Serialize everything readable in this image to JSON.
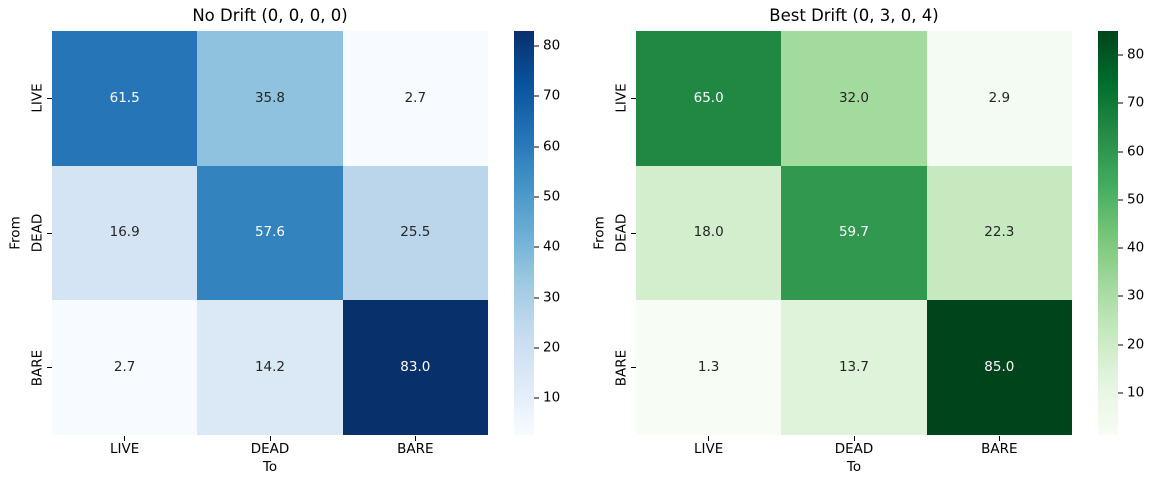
{
  "figure": {
    "background": "#ffffff",
    "axis_text_color": "#000000",
    "annotation_dark_color": "#262626",
    "annotation_light_color": "#ffffff"
  },
  "colormaps": {
    "Blues": [
      "#f7fbff",
      "#deebf7",
      "#c6dbef",
      "#9ecae1",
      "#6baed6",
      "#4292c6",
      "#2171b5",
      "#08519c",
      "#08306b"
    ],
    "Greens": [
      "#f7fcf5",
      "#e5f5e0",
      "#c7e9c0",
      "#a1d99b",
      "#74c476",
      "#41ab5d",
      "#238b45",
      "#006d2c",
      "#00441b"
    ]
  },
  "chart_data": [
    {
      "type": "heatmap",
      "title": "No Drift (0, 0, 0, 0)",
      "xlabel": "To",
      "ylabel": "From",
      "x_tick_labels": [
        "LIVE",
        "DEAD",
        "BARE"
      ],
      "y_tick_labels": [
        "LIVE",
        "DEAD",
        "BARE"
      ],
      "rows": [
        [
          61.5,
          35.8,
          2.7
        ],
        [
          16.9,
          57.6,
          25.5
        ],
        [
          2.7,
          14.2,
          83.0
        ]
      ],
      "value_decimals": 1,
      "colormap": "Blues",
      "vmin": 2.7,
      "vmax": 83.0,
      "colorbar_ticks": [
        10,
        20,
        30,
        40,
        50,
        60,
        70,
        80
      ],
      "legend_position": "colorbar-right",
      "grid": false
    },
    {
      "type": "heatmap",
      "title": "Best Drift (0, 3, 0, 4)",
      "xlabel": "To",
      "ylabel": "From",
      "x_tick_labels": [
        "LIVE",
        "DEAD",
        "BARE"
      ],
      "y_tick_labels": [
        "LIVE",
        "DEAD",
        "BARE"
      ],
      "rows": [
        [
          65.0,
          32.0,
          2.9
        ],
        [
          18.0,
          59.7,
          22.3
        ],
        [
          1.3,
          13.7,
          85.0
        ]
      ],
      "value_decimals": 1,
      "colormap": "Greens",
      "vmin": 1.3,
      "vmax": 85.0,
      "colorbar_ticks": [
        10,
        20,
        30,
        40,
        50,
        60,
        70,
        80
      ],
      "legend_position": "colorbar-right",
      "grid": false
    }
  ]
}
